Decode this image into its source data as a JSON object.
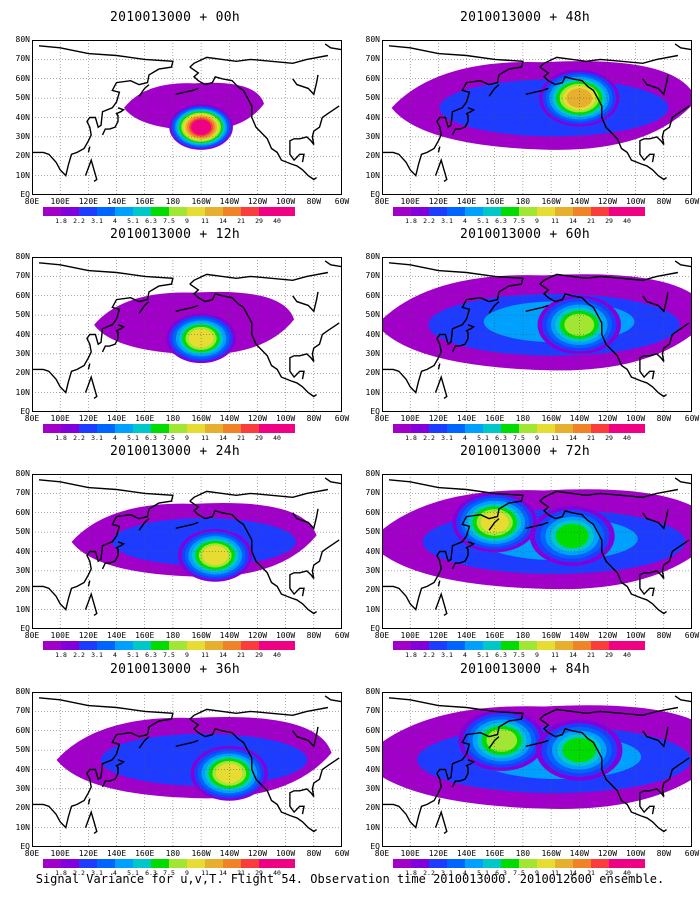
{
  "panels": [
    {
      "id": "p00",
      "title": "2010013000 + 00h",
      "peaks": [
        {
          "lon": -160,
          "lat": 35,
          "level": 12
        }
      ],
      "spread": 0.2
    },
    {
      "id": "p48",
      "title": "2010013000 + 48h",
      "peaks": [
        {
          "lon": -140,
          "lat": 50,
          "level": 9
        }
      ],
      "spread": 0.75
    },
    {
      "id": "p12",
      "title": "2010013000 + 12h",
      "peaks": [
        {
          "lon": -160,
          "lat": 38,
          "level": 8
        }
      ],
      "spread": 0.4
    },
    {
      "id": "p60",
      "title": "2010013000 + 60h",
      "peaks": [
        {
          "lon": -140,
          "lat": 45,
          "level": 7
        }
      ],
      "spread": 0.85
    },
    {
      "id": "p24",
      "title": "2010013000 + 24h",
      "peaks": [
        {
          "lon": -150,
          "lat": 38,
          "level": 8
        }
      ],
      "spread": 0.55
    },
    {
      "id": "p72",
      "title": "2010013000 + 72h",
      "peaks": [
        {
          "lon": 160,
          "lat": 55,
          "level": 8
        },
        {
          "lon": -145,
          "lat": 48,
          "level": 6
        }
      ],
      "spread": 0.9
    },
    {
      "id": "p36",
      "title": "2010013000 + 36h",
      "peaks": [
        {
          "lon": -140,
          "lat": 38,
          "level": 8
        }
      ],
      "spread": 0.65
    },
    {
      "id": "p84",
      "title": "2010013000 + 84h",
      "peaks": [
        {
          "lon": 165,
          "lat": 55,
          "level": 7
        },
        {
          "lon": -140,
          "lat": 50,
          "level": 6
        }
      ],
      "spread": 0.95
    }
  ],
  "axis": {
    "lat_labels": [
      "EQ",
      "10N",
      "20N",
      "30N",
      "40N",
      "50N",
      "60N",
      "70N",
      "80N"
    ],
    "lon_labels": [
      "80E",
      "100E",
      "120E",
      "140E",
      "160E",
      "180",
      "160W",
      "140W",
      "120W",
      "100W",
      "80W",
      "60W"
    ]
  },
  "colorbar": {
    "labels": [
      "1.8",
      "2.2",
      "3.1",
      "4",
      "5.1",
      "6.3",
      "7.5",
      "9",
      "11",
      "14",
      "21",
      "29",
      "40"
    ],
    "colors": [
      "#a000c8",
      "#8200dc",
      "#1e3cff",
      "#0064ff",
      "#00a0ff",
      "#00c8c8",
      "#00dc00",
      "#a0e632",
      "#e6dc32",
      "#e6af2d",
      "#f08228",
      "#fa3c3c",
      "#f00082"
    ]
  },
  "footer": "Signal Variance for u,v,T. Flight 54. Observation time 2010013000. 2010012600 ensemble."
}
